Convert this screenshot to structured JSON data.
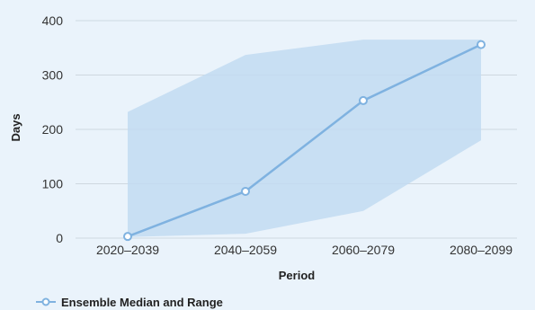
{
  "chart_data": {
    "type": "line",
    "xlabel": "Period",
    "ylabel": "Days",
    "ylim": [
      0,
      400
    ],
    "yticks": [
      0,
      100,
      200,
      300,
      400
    ],
    "categories": [
      "2020–2039",
      "2040–2059",
      "2060–2079",
      "2080–2099"
    ],
    "series": [
      {
        "name": "Ensemble Median and Range",
        "values": [
          3,
          86,
          253,
          356
        ],
        "range_low": [
          2,
          8,
          50,
          180
        ],
        "range_high": [
          232,
          337,
          365,
          365
        ]
      }
    ],
    "grid": true,
    "legend": "bottom-left",
    "colors": {
      "line": "#7fb2e0",
      "band": "#c2daf1",
      "background": "#eaf3fb",
      "grid": "#cfd8e0"
    }
  }
}
